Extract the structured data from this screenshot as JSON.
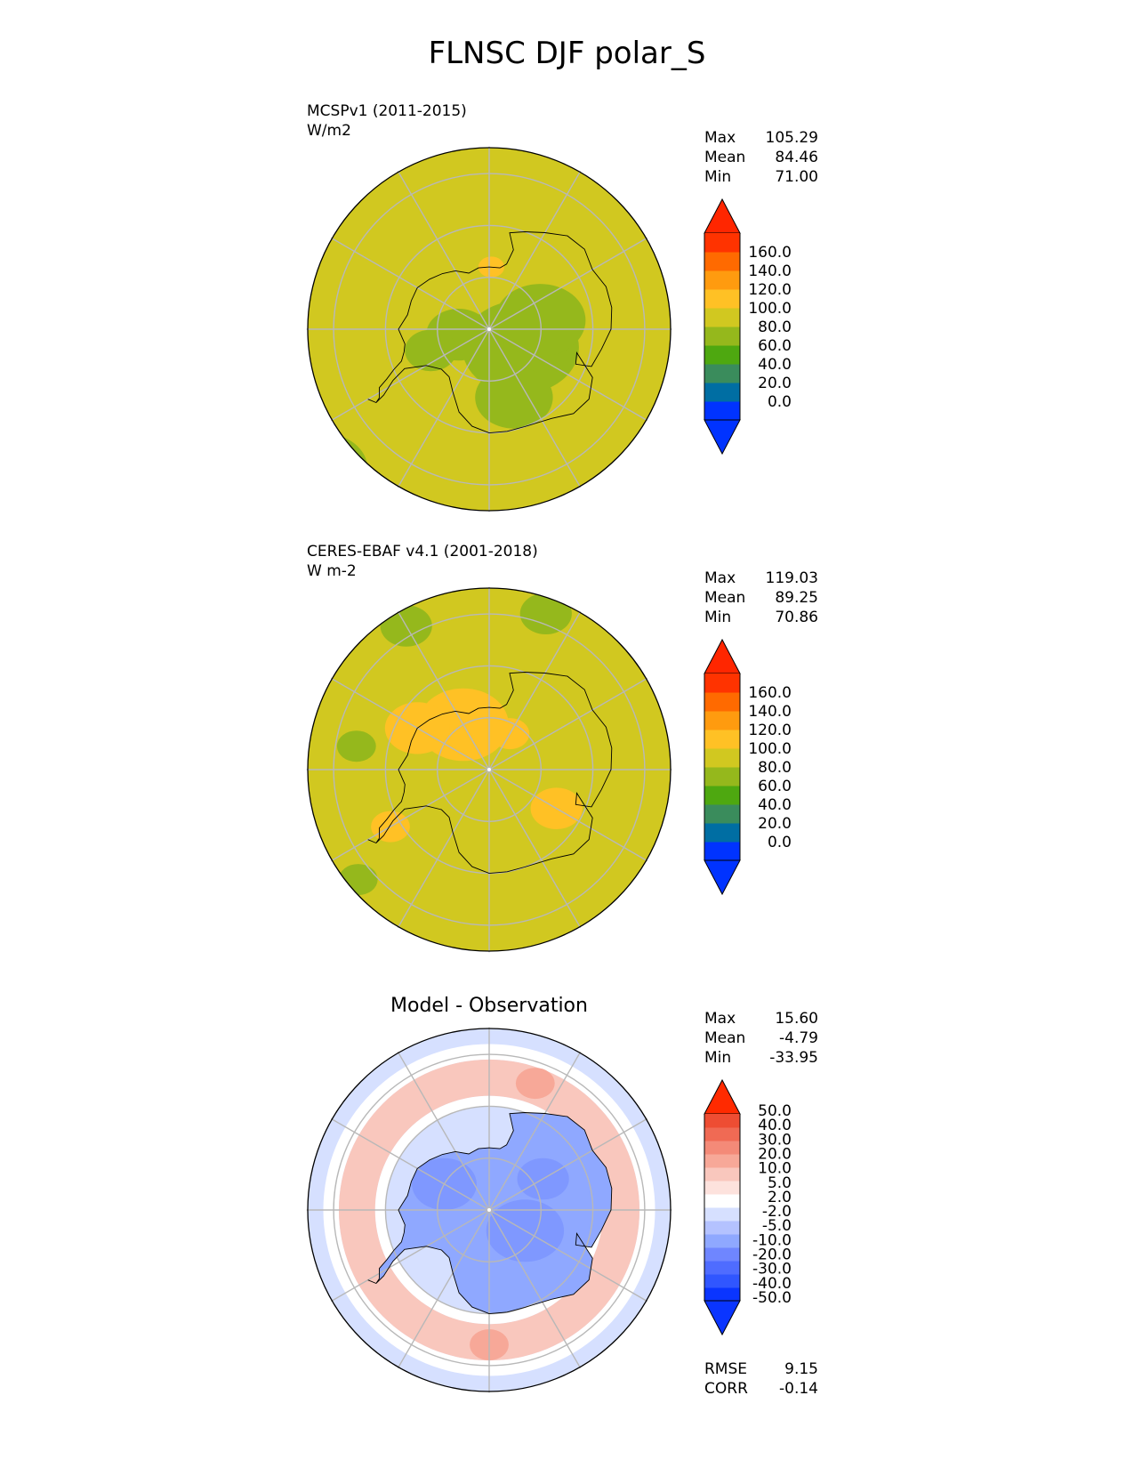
{
  "title": "FLNSC DJF polar_S",
  "panels": [
    {
      "id": "test",
      "label_line1": "MCSPv1 (2011-2015)",
      "label_line2": "W/m2",
      "stats": [
        {
          "label": "Max",
          "value": "105.29"
        },
        {
          "label": "Mean",
          "value": "84.46"
        },
        {
          "label": "Min",
          "value": "71.00"
        }
      ],
      "background_color": "#d1c820",
      "blobs": [
        {
          "color": "#95b81c",
          "lat": -83,
          "lon": 60,
          "r": 9
        },
        {
          "color": "#95b81c",
          "lat": -80,
          "lon": 100,
          "r": 7
        },
        {
          "color": "#95b81c",
          "lat": -76,
          "lon": 20,
          "r": 6
        },
        {
          "color": "#95b81c",
          "lat": -84,
          "lon": -80,
          "r": 5
        },
        {
          "color": "#95b81c",
          "lat": -78,
          "lon": -70,
          "r": 4
        },
        {
          "color": "#95b81c",
          "lat": -48,
          "lon": -50,
          "r": 7
        },
        {
          "color": "#95b81c",
          "lat": -46,
          "lon": -140,
          "r": 5
        },
        {
          "color": "#ffc125",
          "lat": -78,
          "lon": 178,
          "r": 2
        }
      ]
    },
    {
      "id": "ref",
      "label_line1": "CERES-EBAF v4.1 (2001-2018)",
      "label_line2": "W m-2",
      "stats": [
        {
          "label": "Max",
          "value": "119.03"
        },
        {
          "label": "Mean",
          "value": "89.25"
        },
        {
          "label": "Min",
          "value": "70.86"
        }
      ],
      "background_color": "#d1c820",
      "blobs": [
        {
          "color": "#ffc125",
          "lat": -80,
          "lon": -150,
          "r": 7
        },
        {
          "color": "#ffc125",
          "lat": -74,
          "lon": -120,
          "r": 5
        },
        {
          "color": "#ffc125",
          "lat": -75,
          "lon": 60,
          "r": 4
        },
        {
          "color": "#ffc125",
          "lat": -82,
          "lon": 150,
          "r": 3
        },
        {
          "color": "#ffc125",
          "lat": -68,
          "lon": -60,
          "r": 3
        },
        {
          "color": "#95b81c",
          "lat": -58,
          "lon": -150,
          "r": 4
        },
        {
          "color": "#95b81c",
          "lat": -58,
          "lon": 160,
          "r": 4
        },
        {
          "color": "#95b81c",
          "lat": -57,
          "lon": -50,
          "r": 3
        },
        {
          "color": "#95b81c",
          "lat": -64,
          "lon": -100,
          "r": 3
        }
      ]
    },
    {
      "id": "diff",
      "sub_title": "Model - Observation",
      "stats": [
        {
          "label": "Max",
          "value": "15.60"
        },
        {
          "label": "Mean",
          "value": "-4.79"
        },
        {
          "label": "Min",
          "value": "-33.95"
        }
      ],
      "bottom_stats": [
        {
          "label": "RMSE",
          "value": "9.15"
        },
        {
          "label": "CORR",
          "value": "-0.14"
        }
      ],
      "background_color": "#d6e0ff",
      "rings": [
        {
          "color": "#ffffff",
          "lat_outer": -58,
          "lat_inner": -61
        },
        {
          "color": "#f9c7bd",
          "lat_outer": -61,
          "lat_inner": -68
        },
        {
          "color": "#ffffff",
          "lat_outer": -68,
          "lat_inner": -70
        }
      ],
      "interior_color": "#8fa8ff",
      "blobs": [
        {
          "color": "#7f98ff",
          "lat": -82,
          "lon": 60,
          "r": 6
        },
        {
          "color": "#7f98ff",
          "lat": -80,
          "lon": -120,
          "r": 5
        },
        {
          "color": "#7f98ff",
          "lat": -78,
          "lon": 120,
          "r": 4
        },
        {
          "color": "#a9b9ff",
          "lat": -48,
          "lon": -150,
          "r": 6
        },
        {
          "color": "#a9b9ff",
          "lat": -47,
          "lon": 40,
          "r": 5
        },
        {
          "color": "#f7a898",
          "lat": -64,
          "lon": 0,
          "r": 3
        },
        {
          "color": "#f7a898",
          "lat": -64,
          "lon": 160,
          "r": 3
        }
      ]
    }
  ],
  "colorbar_abs": {
    "colors": [
      "#0033ff",
      "#006ea3",
      "#3a8c5c",
      "#4ea810",
      "#95b81c",
      "#d1c820",
      "#ffc125",
      "#ff9b0f",
      "#ff6a00",
      "#ff3300"
    ],
    "under_color": "#0033ff",
    "over_color": "#ff2600",
    "labels": [
      "0.0",
      "20.0",
      "40.0",
      "60.0",
      "80.0",
      "100.0",
      "120.0",
      "140.0",
      "160.0"
    ]
  },
  "colorbar_diff": {
    "colors": [
      "#0a35ff",
      "#3056ff",
      "#4f6cff",
      "#6f86ff",
      "#8fa8ff",
      "#b4c2ff",
      "#d6e0ff",
      "#ffffff",
      "#fde2dd",
      "#f9c7bd",
      "#f7a898",
      "#f48a78",
      "#f06a54",
      "#ee4d33"
    ],
    "under_color": "#0a35ff",
    "over_color": "#ff2a00",
    "labels": [
      "-50.0",
      "-40.0",
      "-30.0",
      "-20.0",
      "-10.0",
      "-5.0",
      "-2.0",
      "2.0",
      "5.0",
      "10.0",
      "20.0",
      "30.0",
      "40.0",
      "50.0"
    ]
  },
  "map_extent": {
    "lat_min": -90,
    "lat_max": -55
  },
  "graticule": {
    "lat_circles": [
      -80,
      -70,
      -60
    ],
    "lon_lines": [
      0,
      30,
      60,
      90,
      120,
      150,
      180,
      210,
      240,
      270,
      300,
      330
    ]
  },
  "coastline_lonlat": [
    [
      -60,
      -63
    ],
    [
      -57,
      -64
    ],
    [
      -58,
      -65
    ],
    [
      -62,
      -66
    ],
    [
      -64,
      -68
    ],
    [
      -67,
      -70
    ],
    [
      -70,
      -72
    ],
    [
      -75,
      -73
    ],
    [
      -80,
      -73.5
    ],
    [
      -90,
      -72.5
    ],
    [
      -100,
      -74
    ],
    [
      -110,
      -74
    ],
    [
      -120,
      -74
    ],
    [
      -130,
      -75
    ],
    [
      -140,
      -76
    ],
    [
      -150,
      -77
    ],
    [
      -160,
      -78.5
    ],
    [
      -170,
      -78
    ],
    [
      -180,
      -78
    ],
    [
      170,
      -78
    ],
    [
      165,
      -77
    ],
    [
      163,
      -74
    ],
    [
      168,
      -71
    ],
    [
      160,
      -70
    ],
    [
      150,
      -68.5
    ],
    [
      140,
      -66.5
    ],
    [
      130,
      -66
    ],
    [
      120,
      -67
    ],
    [
      110,
      -66
    ],
    [
      100,
      -66
    ],
    [
      90,
      -66.5
    ],
    [
      80,
      -68
    ],
    [
      70,
      -69
    ],
    [
      68,
      -72
    ],
    [
      75,
      -72.5
    ],
    [
      65,
      -68
    ],
    [
      55,
      -66.5
    ],
    [
      45,
      -67
    ],
    [
      35,
      -69
    ],
    [
      20,
      -70
    ],
    [
      10,
      -70
    ],
    [
      0,
      -70
    ],
    [
      -10,
      -71
    ],
    [
      -20,
      -73
    ],
    [
      -30,
      -76
    ],
    [
      -40,
      -78
    ],
    [
      -50,
      -78
    ],
    [
      -60,
      -76
    ],
    [
      -65,
      -72
    ],
    [
      -62,
      -69
    ],
    [
      -58,
      -66
    ],
    [
      -57,
      -64
    ],
    [
      -60,
      -63
    ]
  ]
}
